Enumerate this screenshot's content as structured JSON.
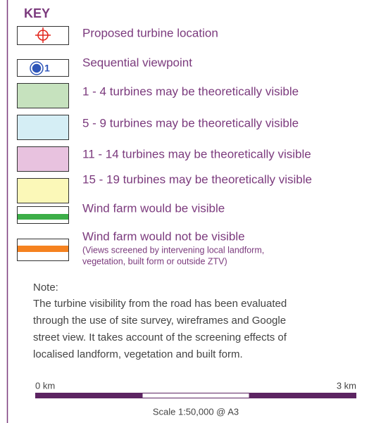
{
  "key": {
    "title": "KEY",
    "items": [
      {
        "label": "Proposed turbine location"
      },
      {
        "label": "Sequential viewpoint",
        "symbol": "1"
      },
      {
        "label": "1 - 4 turbines may be theoretically visible"
      },
      {
        "label": "5 - 9 turbines may be theoretically visible"
      },
      {
        "label": "11 - 14 turbines may be theoretically visible"
      },
      {
        "label": "15 - 19 turbines may be theoretically visible"
      },
      {
        "label": "Wind farm would be visible"
      },
      {
        "label": "Wind farm would not be visible",
        "sublines": [
          "(Views screened by intervening local landform,",
          "vegetation, built form or outside ZTV)"
        ]
      }
    ]
  },
  "note": {
    "heading": "Note:",
    "lines": [
      "The turbine visibility from the road has been evaluated",
      "through the use of site survey, wireframes and Google",
      "street view. It takes account of the screening effects of",
      "localised landform, vegetation and built form."
    ]
  },
  "scale": {
    "start": "0 km",
    "end": "3 km",
    "caption": "Scale 1:50,000 @ A3"
  }
}
